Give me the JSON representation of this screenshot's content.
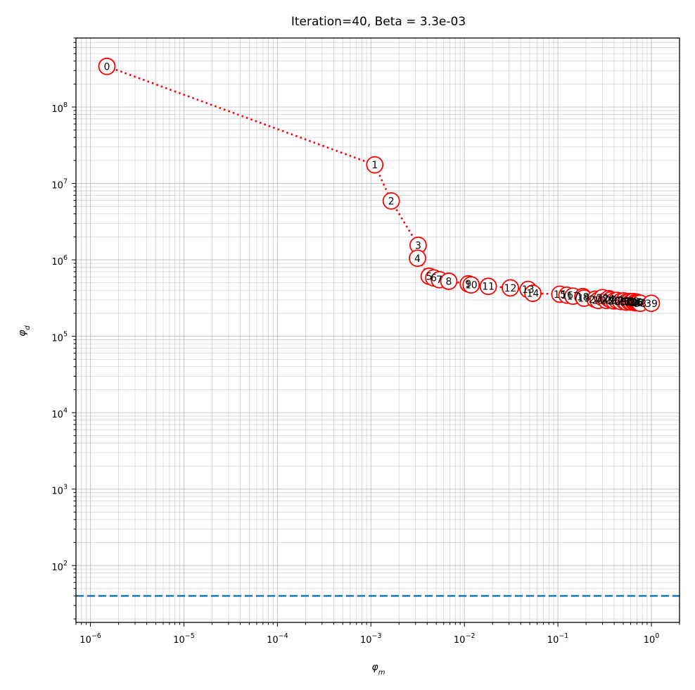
{
  "chart_data": {
    "type": "scatter",
    "title": "Iteration=40, Beta = 3.3e-03",
    "xlabel": "φm",
    "ylabel": "φd",
    "xscale": "log",
    "yscale": "log",
    "xlim": [
      7e-07,
      2
    ],
    "ylim": [
      18,
      800000000.0
    ],
    "grid": true,
    "x_ticks": [
      {
        "base": "10",
        "exp": "−6",
        "value": 1e-06
      },
      {
        "base": "10",
        "exp": "−5",
        "value": 1e-05
      },
      {
        "base": "10",
        "exp": "−4",
        "value": 0.0001
      },
      {
        "base": "10",
        "exp": "−3",
        "value": 0.001
      },
      {
        "base": "10",
        "exp": "−2",
        "value": 0.01
      },
      {
        "base": "10",
        "exp": "−1",
        "value": 0.1
      },
      {
        "base": "10",
        "exp": "0",
        "value": 1
      }
    ],
    "y_ticks": [
      {
        "base": "10",
        "exp": "2",
        "value": 100.0
      },
      {
        "base": "10",
        "exp": "3",
        "value": 1000.0
      },
      {
        "base": "10",
        "exp": "4",
        "value": 10000.0
      },
      {
        "base": "10",
        "exp": "5",
        "value": 100000.0
      },
      {
        "base": "10",
        "exp": "6",
        "value": 1000000.0
      },
      {
        "base": "10",
        "exp": "7",
        "value": 10000000.0
      },
      {
        "base": "10",
        "exp": "8",
        "value": 100000000.0
      }
    ],
    "target_line": {
      "y": 40,
      "color": "#1f77b4",
      "style": "dashed"
    },
    "series": [
      {
        "color": "#ff0000",
        "line_style": "dotted",
        "points": [
          {
            "label": "0",
            "x": 1.5e-06,
            "y": 340000000.0
          },
          {
            "label": "1",
            "x": 0.0011,
            "y": 17500000.0
          },
          {
            "label": "2",
            "x": 0.00165,
            "y": 5900000.0
          },
          {
            "label": "3",
            "x": 0.0032,
            "y": 1550000.0
          },
          {
            "label": "4",
            "x": 0.00315,
            "y": 1050000.0
          },
          {
            "label": "5",
            "x": 0.0042,
            "y": 610000.0
          },
          {
            "label": "6",
            "x": 0.0047,
            "y": 580000.0
          },
          {
            "label": "7",
            "x": 0.0054,
            "y": 550000.0
          },
          {
            "label": "8",
            "x": 0.0068,
            "y": 525000.0
          },
          {
            "label": "9",
            "x": 0.011,
            "y": 485000.0
          },
          {
            "label": "10",
            "x": 0.0118,
            "y": 470000.0
          },
          {
            "label": "11",
            "x": 0.018,
            "y": 450000.0
          },
          {
            "label": "12",
            "x": 0.031,
            "y": 430000.0
          },
          {
            "label": "13",
            "x": 0.048,
            "y": 410000.0
          },
          {
            "label": "14",
            "x": 0.054,
            "y": 365000.0
          },
          {
            "label": "15",
            "x": 0.105,
            "y": 355000.0
          },
          {
            "label": "16",
            "x": 0.125,
            "y": 345000.0
          },
          {
            "label": "17",
            "x": 0.145,
            "y": 335000.0
          },
          {
            "label": "18",
            "x": 0.185,
            "y": 330000.0
          },
          {
            "label": "19",
            "x": 0.19,
            "y": 315000.0
          },
          {
            "label": "20",
            "x": 0.25,
            "y": 305000.0
          },
          {
            "label": "21",
            "x": 0.27,
            "y": 295000.0
          },
          {
            "label": "22",
            "x": 0.3,
            "y": 320000.0
          },
          {
            "label": "23",
            "x": 0.33,
            "y": 295000.0
          },
          {
            "label": "24",
            "x": 0.35,
            "y": 310000.0
          },
          {
            "label": "25",
            "x": 0.37,
            "y": 300000.0
          },
          {
            "label": "26",
            "x": 0.4,
            "y": 290000.0
          },
          {
            "label": "27",
            "x": 0.43,
            "y": 295000.0
          },
          {
            "label": "28",
            "x": 0.47,
            "y": 285000.0
          },
          {
            "label": "29",
            "x": 0.51,
            "y": 290000.0
          },
          {
            "label": "30",
            "x": 0.54,
            "y": 280000.0
          },
          {
            "label": "31",
            "x": 0.58,
            "y": 285000.0
          },
          {
            "label": "32",
            "x": 0.61,
            "y": 280000.0
          },
          {
            "label": "33",
            "x": 0.64,
            "y": 285000.0
          },
          {
            "label": "34",
            "x": 0.67,
            "y": 275000.0
          },
          {
            "label": "35",
            "x": 0.69,
            "y": 280000.0
          },
          {
            "label": "36",
            "x": 0.71,
            "y": 275000.0
          },
          {
            "label": "37",
            "x": 0.73,
            "y": 275000.0
          },
          {
            "label": "38",
            "x": 0.76,
            "y": 270000.0
          },
          {
            "label": "39",
            "x": 1.0,
            "y": 270000.0
          }
        ]
      }
    ]
  }
}
